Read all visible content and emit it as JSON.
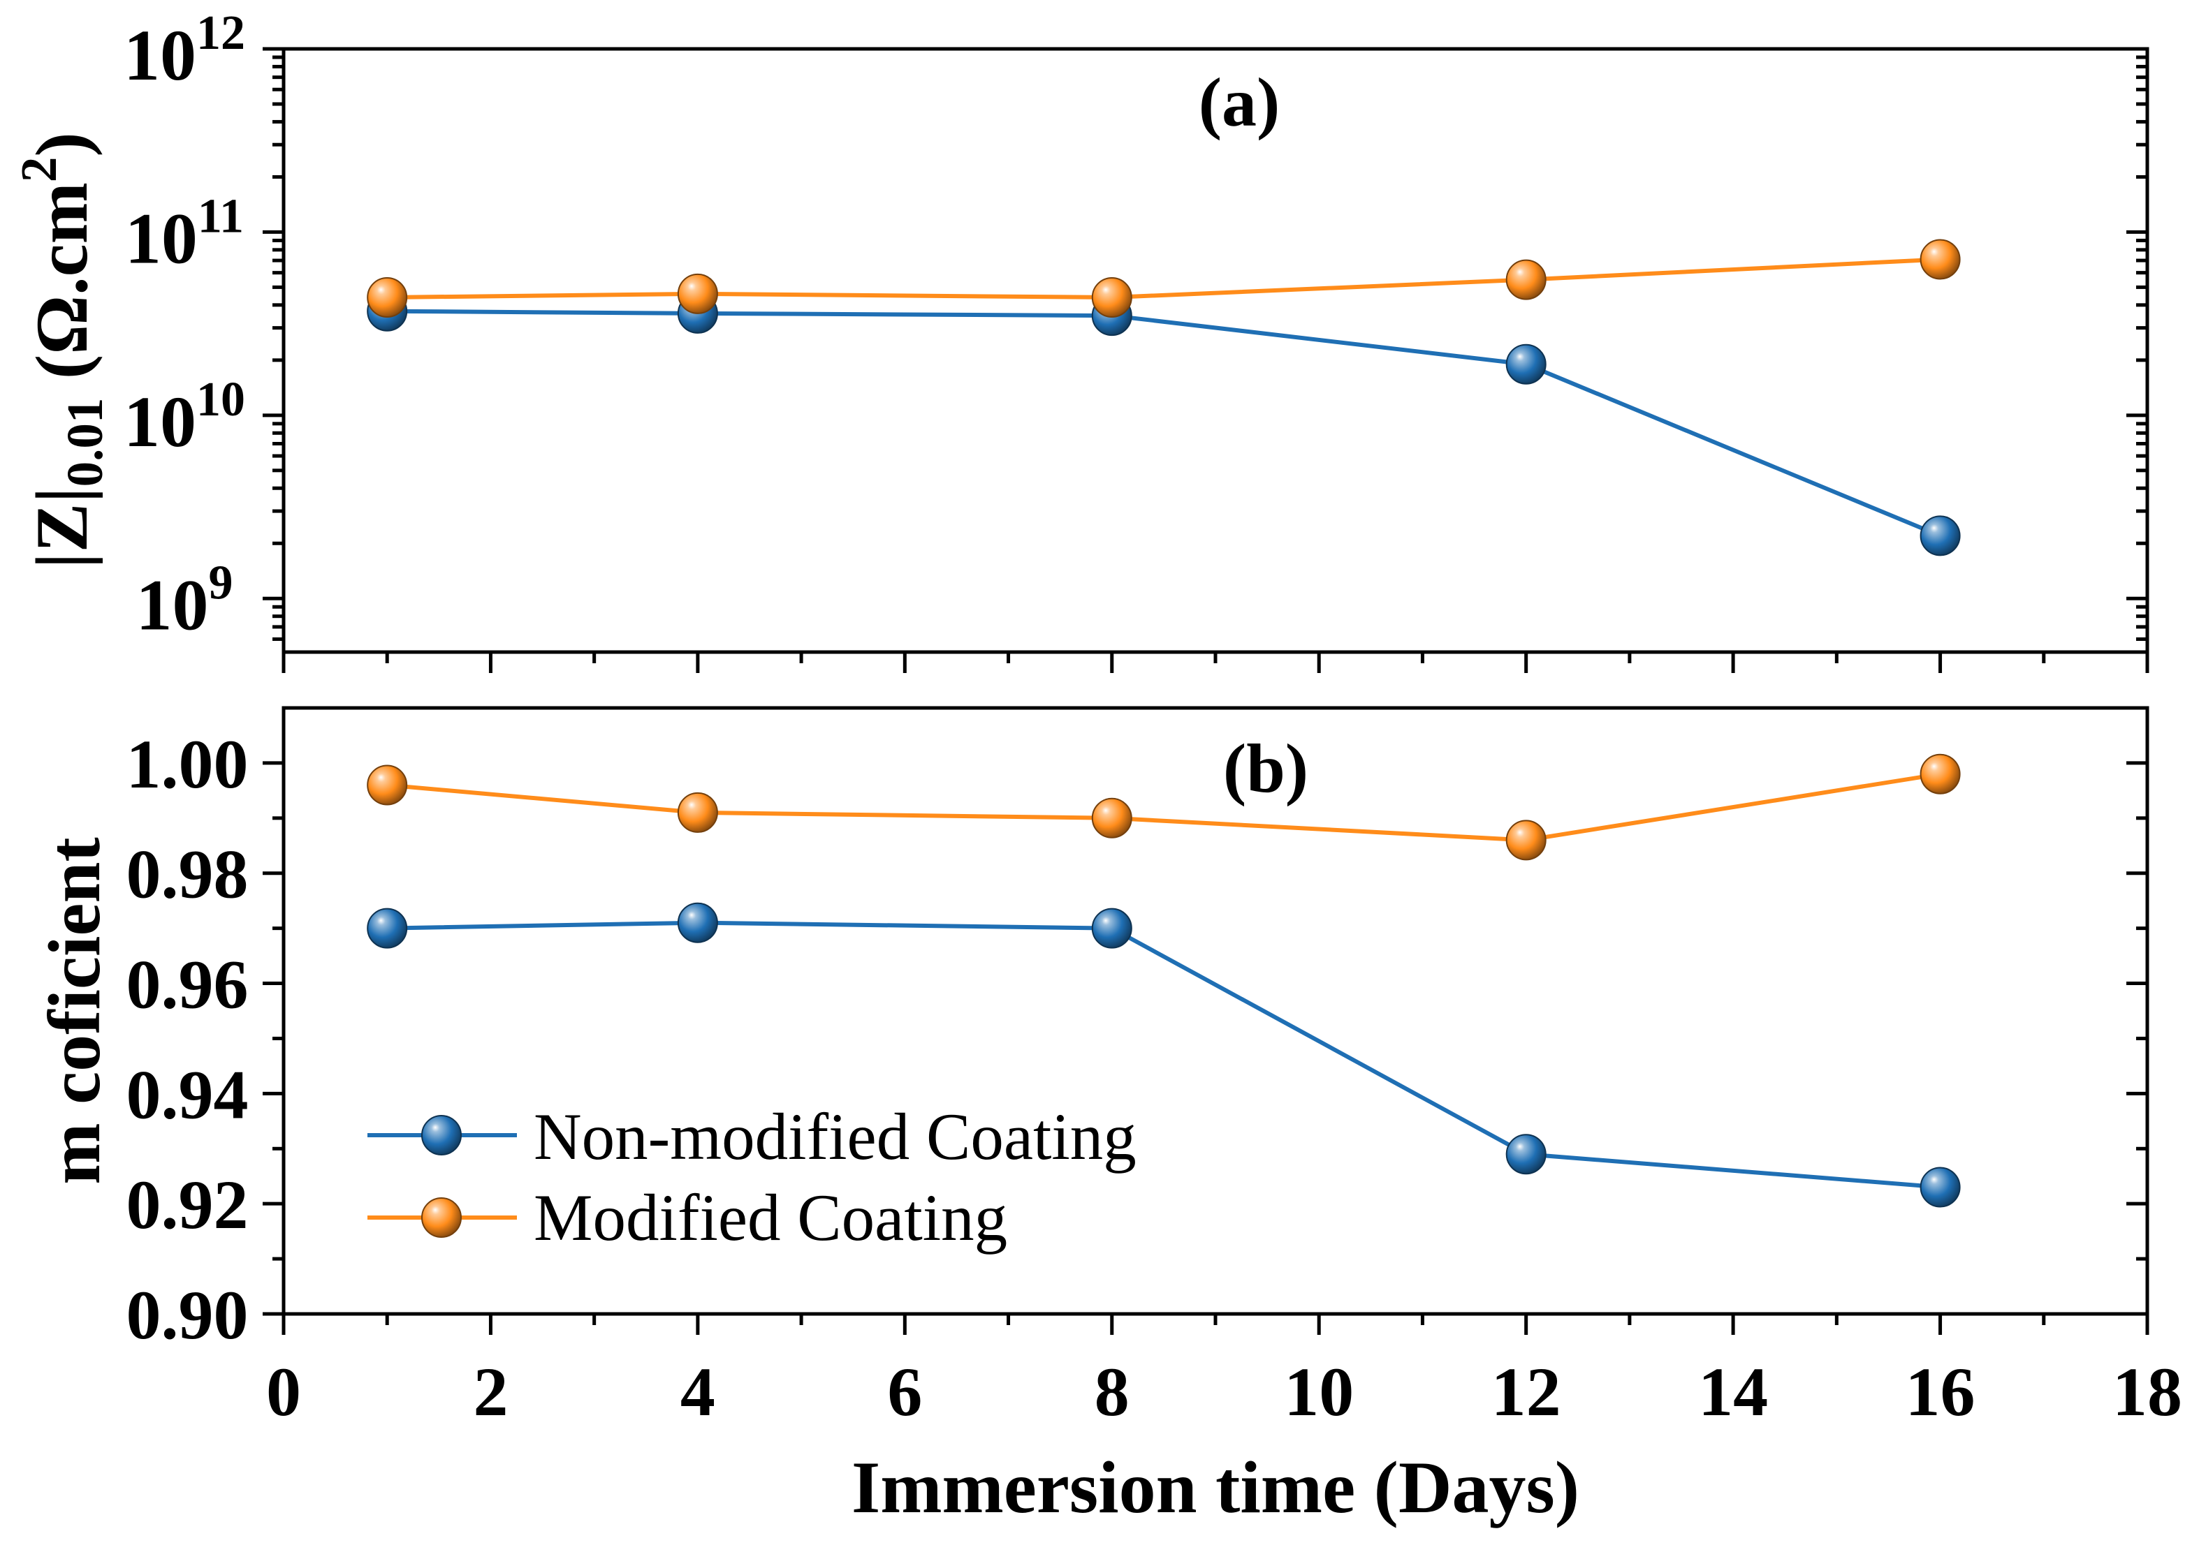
{
  "chart_data": {
    "type": "line",
    "grid": false,
    "x": [
      1,
      4,
      8,
      12,
      16
    ],
    "xlim": [
      0,
      18
    ],
    "x_ticks": [
      0,
      2,
      4,
      6,
      8,
      10,
      12,
      14,
      16,
      18
    ],
    "x_tick_labels": [
      "0",
      "2",
      "4",
      "6",
      "8",
      "10",
      "12",
      "14",
      "16",
      "18"
    ],
    "xlabel": "Immersion time (Days)",
    "legend": [
      {
        "name": "Non-modified Coating",
        "color": "#1f6fb4"
      },
      {
        "name": "Modified Coating",
        "color": "#ff8c1a"
      }
    ],
    "panels": [
      {
        "label": "(a)",
        "log_y": true,
        "ylabel": {
          "main": "|Z|",
          "sub": "0.01",
          "mid": " (Ω.cm",
          "sup": "2",
          "end": ")"
        },
        "ylim": [
          510000000.0,
          1000000000000.0
        ],
        "y_ticks": [
          1000000000.0,
          10000000000.0,
          100000000000.0,
          1000000000000.0
        ],
        "y_tick_labels": [
          {
            "base": "10",
            "exp": "9"
          },
          {
            "base": "10",
            "exp": "10"
          },
          {
            "base": "10",
            "exp": "11"
          },
          {
            "base": "10",
            "exp": "12"
          }
        ],
        "series": [
          {
            "values": [
              37000000000.0,
              36000000000.0,
              35000000000.0,
              19000000000.0,
              2200000000.0
            ]
          },
          {
            "values": [
              44000000000.0,
              46000000000.0,
              44000000000.0,
              55000000000.0,
              71000000000.0
            ]
          }
        ]
      },
      {
        "label": "(b)",
        "log_y": false,
        "ylabel": "m coficient",
        "ylim": [
          0.9,
          1.01
        ],
        "y_ticks": [
          0.9,
          0.92,
          0.94,
          0.96,
          0.98,
          1.0
        ],
        "y_tick_labels": [
          "0.90",
          "0.92",
          "0.94",
          "0.96",
          "0.98",
          "1.00"
        ],
        "series": [
          {
            "values": [
              0.97,
              0.971,
              0.97,
              0.929,
              0.923
            ]
          },
          {
            "values": [
              0.996,
              0.991,
              0.99,
              0.986,
              0.998
            ]
          }
        ]
      }
    ]
  }
}
